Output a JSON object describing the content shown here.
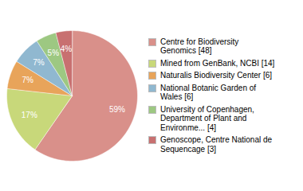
{
  "chart_data": {
    "type": "pie",
    "categories": [
      "Centre for Biodiversity\nGenomics [48]",
      "Mined from GenBank, NCBI [14]",
      "Naturalis Biodiversity Center [6]",
      "National Botanic Garden of\nWales [6]",
      "University of Copenhagen,\nDepartment of Plant and\nEnvironme... [4]",
      "Genoscope, Centre National de\nSequencage [3]"
    ],
    "values": [
      59,
      17,
      7,
      7,
      5,
      4
    ],
    "value_labels": [
      "59%",
      "17%",
      "7%",
      "7%",
      "5%",
      "4%"
    ],
    "colors": [
      "#d9908a",
      "#c8d87a",
      "#e8a45a",
      "#90b8d0",
      "#9dc882",
      "#c87070"
    ],
    "data_labels": true,
    "legend": "right"
  }
}
